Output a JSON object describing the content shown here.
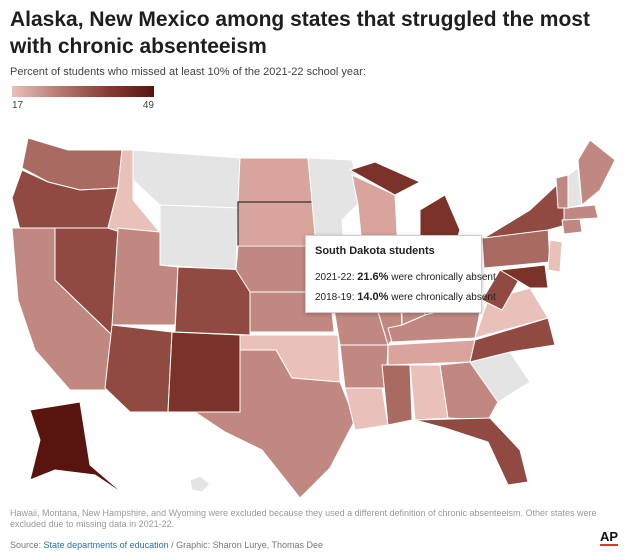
{
  "headline": "Alaska, New Mexico among states that struggled the most with chronic absenteeism",
  "subtitle": "Percent of students who missed at least 10% of the 2021-22 school year:",
  "legend": {
    "min": "17",
    "max": "49"
  },
  "tooltip": {
    "title": "South Dakota students",
    "rows": [
      {
        "label": "2021-22:",
        "value": "21.6%",
        "suffix": "were chronically absent"
      },
      {
        "label": "2018-19:",
        "value": "14.0%",
        "suffix": "were chronically absent"
      }
    ]
  },
  "note": "Hawaii, Montana, New Hampshire, and Wyoming were excluded because they used a different definition of chronic absenteeism. Other states were excluded due to missing data in 2021-22.",
  "source": {
    "prefix": "Source:",
    "link": "State departments of education",
    "credit": "/ Graphic: Sharon Lurye, Thomas Dee"
  },
  "logo": "AP",
  "colors": {
    "no_data": "#e4e4e4",
    "lightest": "#e9c0ba",
    "light": "#d8a49c",
    "mid": "#c08880",
    "mid_dark": "#a96a62",
    "dark": "#914a41",
    "darker": "#7b3228",
    "darkest": "#5a1410"
  }
}
